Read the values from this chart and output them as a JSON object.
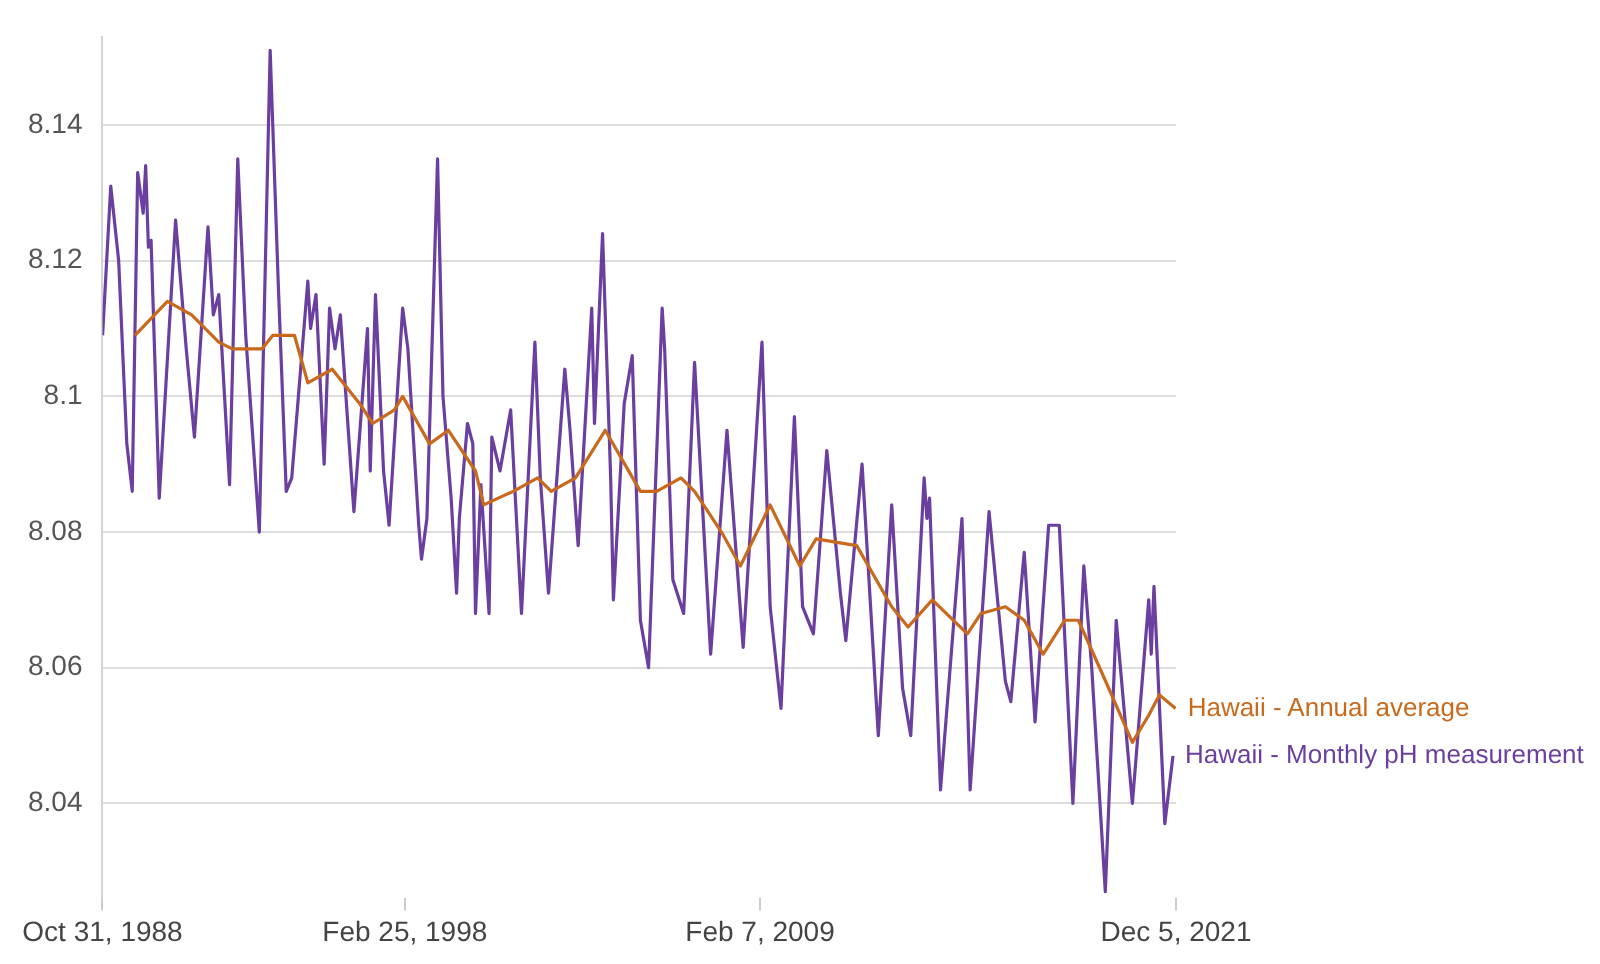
{
  "chart_data": {
    "type": "line",
    "xlim": [
      "1988-10-31",
      "2021-12-05"
    ],
    "xticks": [
      {
        "value": "1988-10-31",
        "label": "Oct 31, 1988"
      },
      {
        "value": "1998-02-25",
        "label": "Feb 25, 1998"
      },
      {
        "value": "2009-02-07",
        "label": "Feb 7, 2009"
      },
      {
        "value": "2021-12-05",
        "label": "Dec 5, 2021"
      }
    ],
    "ylim": [
      8.026,
      8.153
    ],
    "yticks": [
      8.04,
      8.06,
      8.08,
      {
        "value": 8.1,
        "label": "8.1"
      },
      8.12,
      8.14
    ],
    "grid": "y",
    "legend": false,
    "marker": "none",
    "line_style": "solid",
    "series": [
      {
        "name": "Hawaii - Annual average",
        "color": "#c8691c",
        "x": [
          "1989-11",
          "1990-11",
          "1991-08",
          "1992-06",
          "1992-11",
          "1993-07",
          "1993-10",
          "1994-02",
          "1994-10",
          "1995-03",
          "1995-12",
          "1996-10",
          "1997-03",
          "1997-11",
          "1998-02",
          "1998-12",
          "1999-07",
          "2000-05",
          "2000-08",
          "2001-07",
          "2002-04",
          "2002-09",
          "2003-06",
          "2004-05",
          "2005-06",
          "2005-12",
          "2006-09",
          "2007-02",
          "2007-12",
          "2008-07",
          "2009-06",
          "2010-05",
          "2010-11",
          "2012-02",
          "2013-03",
          "2013-09",
          "2014-06",
          "2015-07",
          "2015-12",
          "2016-09",
          "2017-04",
          "2017-11",
          "2018-07",
          "2018-12",
          "2019-09",
          "2020-08",
          "2021-02",
          "2021-06",
          "2021-12"
        ],
        "values": [
          8.109,
          8.114,
          8.112,
          8.108,
          8.107,
          8.107,
          8.107,
          8.109,
          8.109,
          8.102,
          8.104,
          8.099,
          8.096,
          8.098,
          8.1,
          8.093,
          8.095,
          8.089,
          8.084,
          8.086,
          8.088,
          8.086,
          8.088,
          8.095,
          8.086,
          8.086,
          8.088,
          8.086,
          8.08,
          8.075,
          8.084,
          8.075,
          8.079,
          8.078,
          8.069,
          8.066,
          8.07,
          8.065,
          8.068,
          8.069,
          8.067,
          8.062,
          8.067,
          8.067,
          8.059,
          8.049,
          8.053,
          8.056,
          8.054
        ]
      },
      {
        "name": "Hawaii - Monthly pH measurement",
        "color": "#6b3fa0",
        "x": [
          "1988-11",
          "1989-02",
          "1989-05",
          "1989-07",
          "1989-08",
          "1989-10",
          "1989-12",
          "1990-02",
          "1990-03",
          "1990-04",
          "1990-05",
          "1990-08",
          "1991-02",
          "1991-06",
          "1991-09",
          "1992-02",
          "1992-04",
          "1992-06",
          "1992-10",
          "1993-01",
          "1993-04",
          "1993-09",
          "1994-01",
          "1994-04",
          "1994-07",
          "1994-09",
          "1995-03",
          "1995-04",
          "1995-06",
          "1995-09",
          "1995-11",
          "1996-01",
          "1996-03",
          "1996-08",
          "1997-01",
          "1997-02",
          "1997-04",
          "1997-07",
          "1997-09",
          "1998-02",
          "1998-04",
          "1998-08",
          "1998-09",
          "1998-11",
          "1999-03",
          "1999-05",
          "1999-08",
          "1999-10",
          "1999-11",
          "2000-02",
          "2000-04",
          "2000-05",
          "2000-07",
          "2000-10",
          "2000-11",
          "2001-02",
          "2001-06",
          "2001-10",
          "2002-03",
          "2002-05",
          "2002-08",
          "2003-02",
          "2003-04",
          "2003-07",
          "2003-12",
          "2004-01",
          "2004-04",
          "2004-07",
          "2004-08",
          "2004-12",
          "2005-03",
          "2005-06",
          "2005-09",
          "2006-02",
          "2006-03",
          "2006-06",
          "2006-10",
          "2007-02",
          "2007-08",
          "2008-02",
          "2008-08",
          "2009-03",
          "2009-06",
          "2009-10",
          "2010-03",
          "2010-06",
          "2010-10",
          "2011-03",
          "2011-08",
          "2011-10",
          "2012-04",
          "2012-10",
          "2013-03",
          "2013-07",
          "2013-10",
          "2014-03",
          "2014-04",
          "2014-05",
          "2014-09",
          "2015-05",
          "2015-08",
          "2016-03",
          "2016-09",
          "2016-11",
          "2017-04",
          "2017-08",
          "2018-01",
          "2018-05",
          "2018-10",
          "2019-02",
          "2019-05",
          "2019-10",
          "2020-02",
          "2020-08",
          "2021-02",
          "2021-03",
          "2021-04",
          "2021-08",
          "2021-11"
        ],
        "values": [
          8.109,
          8.131,
          8.12,
          8.102,
          8.093,
          8.086,
          8.133,
          8.127,
          8.134,
          8.122,
          8.123,
          8.085,
          8.126,
          8.107,
          8.094,
          8.125,
          8.112,
          8.115,
          8.087,
          8.135,
          8.109,
          8.08,
          8.151,
          8.117,
          8.086,
          8.088,
          8.117,
          8.11,
          8.115,
          8.09,
          8.113,
          8.107,
          8.112,
          8.083,
          8.11,
          8.089,
          8.115,
          8.089,
          8.081,
          8.113,
          8.107,
          8.081,
          8.076,
          8.082,
          8.135,
          8.1,
          8.085,
          8.071,
          8.082,
          8.096,
          8.093,
          8.068,
          8.087,
          8.068,
          8.094,
          8.089,
          8.098,
          8.068,
          8.108,
          8.088,
          8.071,
          8.104,
          8.095,
          8.078,
          8.113,
          8.096,
          8.124,
          8.088,
          8.07,
          8.099,
          8.106,
          8.067,
          8.06,
          8.113,
          8.107,
          8.073,
          8.068,
          8.105,
          8.062,
          8.095,
          8.063,
          8.108,
          8.069,
          8.054,
          8.097,
          8.069,
          8.065,
          8.092,
          8.071,
          8.064,
          8.09,
          8.05,
          8.084,
          8.057,
          8.05,
          8.088,
          8.082,
          8.085,
          8.042,
          8.082,
          8.042,
          8.083,
          8.058,
          8.055,
          8.077,
          8.052,
          8.081,
          8.081,
          8.04,
          8.075,
          8.06,
          8.027,
          8.067,
          8.04,
          8.07,
          8.062,
          8.072,
          8.037,
          8.047
        ]
      }
    ]
  }
}
